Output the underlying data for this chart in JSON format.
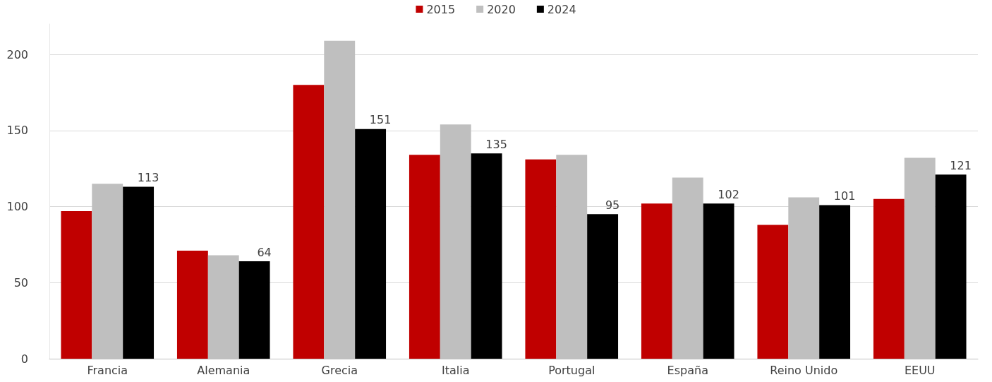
{
  "chart_data": {
    "type": "bar",
    "categories": [
      "Francia",
      "Alemania",
      "Grecia",
      "Italia",
      "Portugal",
      "España",
      "Reino Unido",
      "EEUU"
    ],
    "series": [
      {
        "name": "2015",
        "color": "#c00000",
        "values": [
          97,
          71,
          180,
          134,
          131,
          102,
          88,
          105
        ]
      },
      {
        "name": "2020",
        "color": "#bfbfbf",
        "values": [
          115,
          68,
          209,
          154,
          134,
          119,
          106,
          132
        ]
      },
      {
        "name": "2024",
        "color": "#000000",
        "values": [
          113,
          64,
          151,
          135,
          95,
          102,
          101,
          121
        ],
        "value_labels": [
          "113",
          "64",
          "151",
          "135",
          "95",
          "102",
          "101",
          "121"
        ]
      }
    ],
    "ylim": [
      0,
      220
    ],
    "yticks": [
      0,
      50,
      100,
      150,
      200
    ],
    "grid": "y",
    "legend": "top"
  }
}
